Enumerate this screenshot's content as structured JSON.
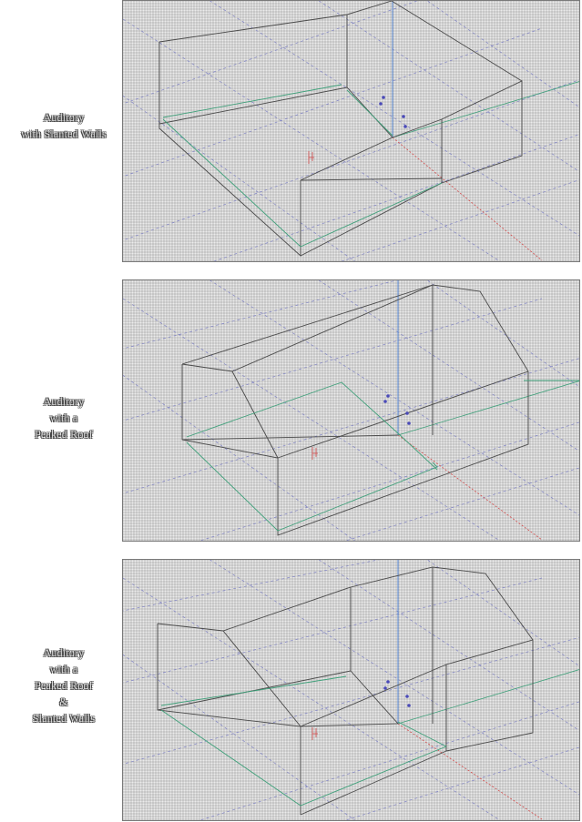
{
  "panels": [
    {
      "label_lines": [
        "Auditory",
        "with Slanted Walls"
      ]
    },
    {
      "label_lines": [
        "Auditory",
        "with a",
        "Peaked Roof"
      ]
    },
    {
      "label_lines": [
        "Auditory",
        "with a",
        "Peaked Roof",
        "&",
        "Slanted Walls"
      ]
    }
  ]
}
